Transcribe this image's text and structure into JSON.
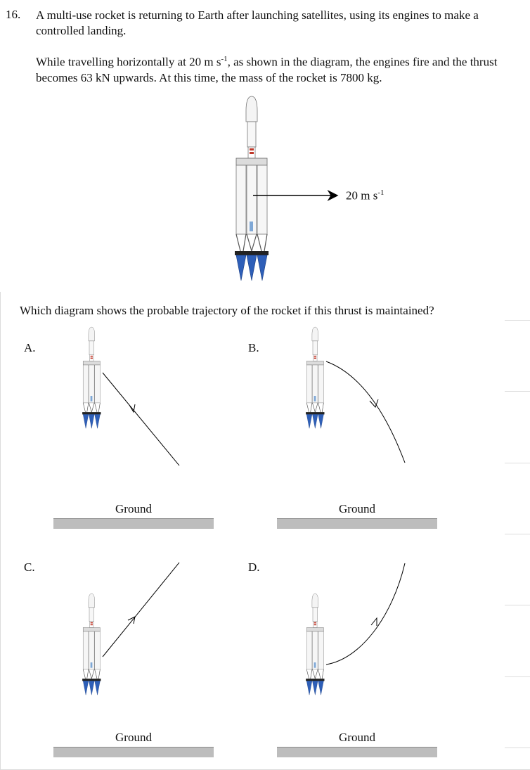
{
  "question": {
    "number": "16.",
    "stem_line1": "A multi-use rocket is returning to Earth after launching satellites, using its engines to make a controlled landing.",
    "stem_part1": "While travelling horizontally at 20 m s",
    "stem_sup": "-1",
    "stem_part2": ", as shown in the diagram, the engines fire and the thrust becomes 63 kN upwards. At this time, the mass of the rocket is 7800 kg.",
    "velocity_value": "20 m s",
    "velocity_sup": "-1",
    "prompt": "Which diagram shows the probable trajectory of the rocket if this thrust is maintained?"
  },
  "options": [
    {
      "label": "A.",
      "ground": "Ground"
    },
    {
      "label": "B.",
      "ground": "Ground"
    },
    {
      "label": "C.",
      "ground": "Ground"
    },
    {
      "label": "D.",
      "ground": "Ground"
    }
  ]
}
